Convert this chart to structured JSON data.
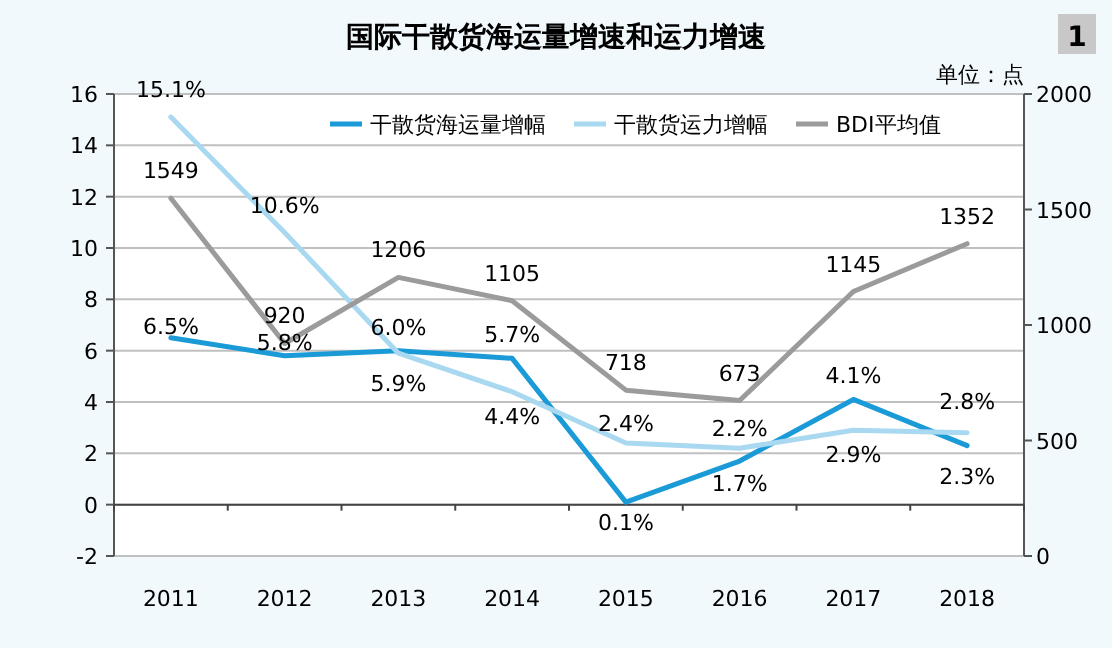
{
  "chart_data": {
    "type": "line",
    "title": "国际干散货海运量增速和运力增速",
    "y2label": "单位：点",
    "annotations": [
      "1"
    ],
    "categories": [
      "2011",
      "2012",
      "2013",
      "2014",
      "2015",
      "2016",
      "2017",
      "2018"
    ],
    "series": [
      {
        "name": "干散货海运量增幅",
        "color": "#1a9ad6",
        "values": [
          6.5,
          5.8,
          6.0,
          5.7,
          0.1,
          1.7,
          4.1,
          2.3
        ],
        "value_labels": [
          "6.5%",
          "5.8%",
          "6.0%",
          "5.7%",
          "0.1%",
          "1.7%",
          "4.1%",
          "2.3%"
        ]
      },
      {
        "name": "干散货运力增幅",
        "color": "#a9d9f0",
        "values": [
          15.1,
          10.6,
          5.9,
          4.4,
          2.4,
          2.2,
          2.9,
          2.8
        ],
        "value_labels": [
          "15.1%",
          "10.6%",
          "5.9%",
          "4.4%",
          "2.4%",
          "2.2%",
          "2.9%",
          "2.8%"
        ]
      },
      {
        "name": "BDI平均值",
        "color": "#9b9b9b",
        "axis": "y2",
        "values": [
          1549,
          920,
          1206,
          1105,
          718,
          673,
          1145,
          1352
        ],
        "data_labels": true
      }
    ],
    "ylim": [
      -2,
      16
    ],
    "yticks": [
      -2,
      0,
      2,
      4,
      6,
      8,
      10,
      12,
      14,
      16
    ],
    "y2lim": [
      0,
      2000
    ],
    "y2ticks": [
      0,
      500,
      1000,
      1500,
      2000
    ],
    "grid": "y",
    "legend": "top right",
    "marker": "none",
    "line_style": "solid"
  }
}
